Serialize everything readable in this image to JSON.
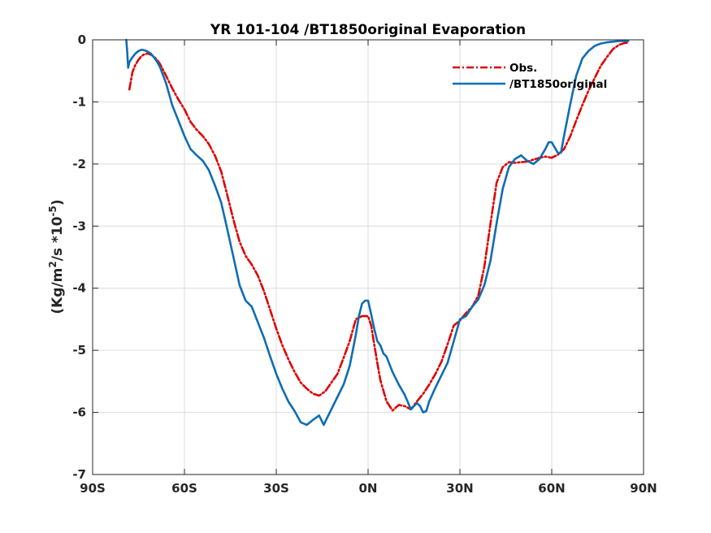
{
  "chart_data": {
    "type": "line",
    "title": "YR 101-104 /BT1850original Evaporation",
    "xlabel": "",
    "ylabel_parts": [
      "(Kg/m",
      "2",
      "/s *10",
      "-5",
      ")"
    ],
    "xlim": [
      -90,
      90
    ],
    "ylim": [
      -7,
      0
    ],
    "x_ticks": [
      -90,
      -60,
      -30,
      0,
      30,
      60,
      90
    ],
    "x_tick_labels": [
      "90S",
      "60S",
      "30S",
      "0N",
      "30N",
      "60N",
      "90N"
    ],
    "y_ticks": [
      0,
      -1,
      -2,
      -3,
      -4,
      -5,
      -6,
      -7
    ],
    "y_tick_labels": [
      "0",
      "-1",
      "-2",
      "-3",
      "-4",
      "-5",
      "-6",
      "-7"
    ],
    "grid": true,
    "legend_position": "top-right",
    "series": [
      {
        "name": "Obs.",
        "color": "#e00000",
        "style": "dashdot",
        "x": [
          -78,
          -77,
          -76,
          -75,
          -74,
          -73,
          -72,
          -71,
          -70,
          -69,
          -68,
          -66,
          -64,
          -62,
          -60,
          -58,
          -56,
          -54,
          -52,
          -50,
          -48,
          -46,
          -44,
          -42,
          -40,
          -38,
          -36,
          -34,
          -32,
          -30,
          -28,
          -26,
          -24,
          -22,
          -20,
          -18,
          -16,
          -14,
          -12,
          -10,
          -8,
          -6,
          -4,
          -2,
          0,
          1,
          2,
          3,
          4,
          6,
          8,
          10,
          12,
          14,
          16,
          18,
          20,
          22,
          24,
          26,
          28,
          30,
          32,
          34,
          36,
          38,
          40,
          42,
          44,
          46,
          48,
          50,
          52,
          54,
          56,
          58,
          60,
          62,
          64,
          66,
          68,
          70,
          72,
          74,
          76,
          78,
          80,
          82,
          84,
          85
        ],
        "y": [
          -0.8,
          -0.52,
          -0.4,
          -0.32,
          -0.26,
          -0.23,
          -0.22,
          -0.24,
          -0.27,
          -0.32,
          -0.39,
          -0.58,
          -0.78,
          -0.96,
          -1.12,
          -1.32,
          -1.45,
          -1.55,
          -1.68,
          -1.87,
          -2.12,
          -2.5,
          -2.9,
          -3.25,
          -3.48,
          -3.62,
          -3.8,
          -4.05,
          -4.35,
          -4.65,
          -4.92,
          -5.15,
          -5.35,
          -5.52,
          -5.62,
          -5.7,
          -5.73,
          -5.66,
          -5.52,
          -5.38,
          -5.12,
          -4.85,
          -4.5,
          -4.45,
          -4.45,
          -4.6,
          -4.9,
          -5.2,
          -5.48,
          -5.82,
          -5.97,
          -5.88,
          -5.9,
          -5.95,
          -5.82,
          -5.7,
          -5.55,
          -5.38,
          -5.18,
          -4.9,
          -4.6,
          -4.52,
          -4.4,
          -4.3,
          -4.12,
          -3.65,
          -2.95,
          -2.3,
          -2.05,
          -1.97,
          -1.98,
          -1.97,
          -1.96,
          -1.93,
          -1.9,
          -1.88,
          -1.9,
          -1.85,
          -1.76,
          -1.56,
          -1.3,
          -1.05,
          -0.82,
          -0.62,
          -0.42,
          -0.28,
          -0.15,
          -0.08,
          -0.05,
          -0.05
        ]
      },
      {
        "name": "/BT1850original",
        "color": "#0f6db3",
        "style": "solid",
        "x": [
          -79,
          -78.7,
          -78.4,
          -78,
          -77,
          -76,
          -75,
          -74,
          -73,
          -72,
          -71,
          -70,
          -69,
          -68,
          -66,
          -64,
          -62,
          -60,
          -58,
          -56,
          -54,
          -52,
          -50,
          -48,
          -46,
          -44,
          -42,
          -40,
          -38,
          -36,
          -34,
          -32,
          -30,
          -28,
          -26,
          -24,
          -22,
          -20,
          -18,
          -16,
          -15,
          -14.5,
          -14,
          -13,
          -12,
          -10,
          -8,
          -6,
          -4,
          -3,
          -2,
          -1,
          0,
          1,
          2,
          3,
          4,
          5,
          6,
          8,
          10,
          12,
          14,
          15,
          16,
          17,
          18,
          19,
          20,
          22,
          24,
          26,
          28,
          30,
          32,
          34,
          36,
          38,
          40,
          42,
          44,
          46,
          48,
          50,
          52,
          54,
          56,
          58,
          59,
          60,
          62,
          63,
          64,
          66,
          68,
          70,
          72,
          74,
          76,
          78,
          80,
          82,
          84,
          85
        ],
        "y": [
          0,
          -0.2,
          -0.45,
          -0.36,
          -0.28,
          -0.22,
          -0.18,
          -0.16,
          -0.17,
          -0.19,
          -0.22,
          -0.28,
          -0.35,
          -0.44,
          -0.7,
          -1.05,
          -1.3,
          -1.55,
          -1.76,
          -1.86,
          -1.95,
          -2.1,
          -2.35,
          -2.62,
          -3.05,
          -3.5,
          -3.95,
          -4.2,
          -4.3,
          -4.55,
          -4.8,
          -5.1,
          -5.38,
          -5.62,
          -5.83,
          -5.98,
          -6.16,
          -6.2,
          -6.12,
          -6.05,
          -6.15,
          -6.2,
          -6.15,
          -6.05,
          -5.95,
          -5.75,
          -5.55,
          -5.25,
          -4.75,
          -4.45,
          -4.25,
          -4.2,
          -4.2,
          -4.42,
          -4.65,
          -4.85,
          -4.92,
          -5.05,
          -5.1,
          -5.35,
          -5.55,
          -5.72,
          -5.95,
          -5.9,
          -5.85,
          -5.9,
          -6.0,
          -5.98,
          -5.82,
          -5.6,
          -5.4,
          -5.2,
          -4.85,
          -4.5,
          -4.45,
          -4.3,
          -4.18,
          -3.95,
          -3.55,
          -2.95,
          -2.4,
          -2.05,
          -1.92,
          -1.86,
          -1.95,
          -2.0,
          -1.92,
          -1.75,
          -1.65,
          -1.65,
          -1.82,
          -1.82,
          -1.55,
          -1.05,
          -0.58,
          -0.3,
          -0.18,
          -0.1,
          -0.06,
          -0.04,
          -0.03,
          -0.02,
          -0.02,
          -0.02
        ]
      }
    ]
  }
}
